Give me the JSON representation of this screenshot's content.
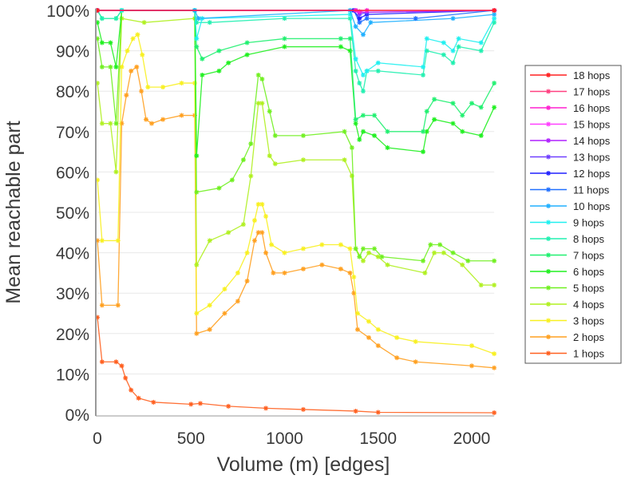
{
  "chart_data": {
    "type": "line",
    "title": "",
    "xlabel": "Volume (m) [edges]",
    "ylabel": "Mean reachable part",
    "xlim": [
      0,
      2120
    ],
    "ylim": [
      0,
      100
    ],
    "xticks": [
      "0",
      "500",
      "1000",
      "1500",
      "2000"
    ],
    "xtick_values": [
      0,
      500,
      1000,
      1500,
      2000
    ],
    "yticks": [
      "0%",
      "10%",
      "20%",
      "30%",
      "40%",
      "50%",
      "60%",
      "70%",
      "80%",
      "90%",
      "100%"
    ],
    "ytick_values": [
      0,
      10,
      20,
      30,
      40,
      50,
      60,
      70,
      80,
      90,
      100
    ],
    "grid": "horizontal",
    "legend_position": "right",
    "series": [
      {
        "name": "1 hops",
        "color": "#ff6020",
        "points": [
          [
            0,
            24
          ],
          [
            25,
            13
          ],
          [
            100,
            13
          ],
          [
            130,
            12
          ],
          [
            150,
            9
          ],
          [
            180,
            6
          ],
          [
            220,
            4
          ],
          [
            300,
            3
          ],
          [
            500,
            2.5
          ],
          [
            550,
            2.7
          ],
          [
            700,
            2
          ],
          [
            900,
            1.5
          ],
          [
            1100,
            1.2
          ],
          [
            1380,
            0.8
          ],
          [
            1500,
            0.5
          ],
          [
            2120,
            0.4
          ]
        ]
      },
      {
        "name": "2 hops",
        "color": "#ffa020",
        "points": [
          [
            0,
            43
          ],
          [
            25,
            27
          ],
          [
            110,
            27
          ],
          [
            130,
            72
          ],
          [
            155,
            79
          ],
          [
            180,
            85
          ],
          [
            210,
            86
          ],
          [
            235,
            80
          ],
          [
            260,
            73
          ],
          [
            290,
            72
          ],
          [
            350,
            73
          ],
          [
            450,
            74
          ],
          [
            520,
            74
          ],
          [
            530,
            20
          ],
          [
            600,
            21
          ],
          [
            680,
            25
          ],
          [
            750,
            28
          ],
          [
            800,
            33
          ],
          [
            840,
            43
          ],
          [
            860,
            45
          ],
          [
            880,
            45
          ],
          [
            900,
            40
          ],
          [
            940,
            35
          ],
          [
            1000,
            35
          ],
          [
            1100,
            36
          ],
          [
            1200,
            37
          ],
          [
            1300,
            36
          ],
          [
            1350,
            35
          ],
          [
            1370,
            30
          ],
          [
            1390,
            21
          ],
          [
            1450,
            19
          ],
          [
            1500,
            17
          ],
          [
            1600,
            14
          ],
          [
            1700,
            13
          ],
          [
            2000,
            12
          ],
          [
            2120,
            11.5
          ]
        ]
      },
      {
        "name": "3 hops",
        "color": "#f8f020",
        "points": [
          [
            0,
            58
          ],
          [
            25,
            43
          ],
          [
            110,
            43
          ],
          [
            130,
            86
          ],
          [
            160,
            90
          ],
          [
            190,
            93
          ],
          [
            215,
            94
          ],
          [
            240,
            89
          ],
          [
            270,
            81
          ],
          [
            350,
            81
          ],
          [
            450,
            82
          ],
          [
            520,
            82
          ],
          [
            530,
            25
          ],
          [
            600,
            27
          ],
          [
            680,
            31
          ],
          [
            750,
            35
          ],
          [
            800,
            40
          ],
          [
            840,
            48
          ],
          [
            860,
            52
          ],
          [
            880,
            52
          ],
          [
            900,
            49
          ],
          [
            930,
            42
          ],
          [
            1000,
            40
          ],
          [
            1100,
            41
          ],
          [
            1200,
            42
          ],
          [
            1300,
            42
          ],
          [
            1350,
            41
          ],
          [
            1370,
            34
          ],
          [
            1390,
            25
          ],
          [
            1450,
            23
          ],
          [
            1500,
            21
          ],
          [
            1600,
            19
          ],
          [
            1700,
            18
          ],
          [
            2000,
            17
          ],
          [
            2120,
            15
          ]
        ]
      },
      {
        "name": "4 hops",
        "color": "#b0f020",
        "points": [
          [
            0,
            82
          ],
          [
            25,
            72
          ],
          [
            70,
            72
          ],
          [
            100,
            60
          ],
          [
            130,
            98
          ],
          [
            250,
            97
          ],
          [
            520,
            98
          ],
          [
            530,
            37
          ],
          [
            600,
            43
          ],
          [
            700,
            45
          ],
          [
            780,
            47
          ],
          [
            820,
            59
          ],
          [
            860,
            77
          ],
          [
            880,
            77
          ],
          [
            920,
            64
          ],
          [
            950,
            62
          ],
          [
            1100,
            63
          ],
          [
            1320,
            63
          ],
          [
            1360,
            59
          ],
          [
            1380,
            41
          ],
          [
            1420,
            38
          ],
          [
            1450,
            40
          ],
          [
            1500,
            39
          ],
          [
            1550,
            37
          ],
          [
            1750,
            35
          ],
          [
            1800,
            40
          ],
          [
            1850,
            40
          ],
          [
            1950,
            37
          ],
          [
            2050,
            32
          ],
          [
            2120,
            32
          ]
        ]
      },
      {
        "name": "5 hops",
        "color": "#70f020",
        "points": [
          [
            0,
            93
          ],
          [
            25,
            86
          ],
          [
            70,
            86
          ],
          [
            100,
            72
          ],
          [
            130,
            100
          ],
          [
            520,
            100
          ],
          [
            530,
            55
          ],
          [
            650,
            56
          ],
          [
            720,
            58
          ],
          [
            780,
            63
          ],
          [
            820,
            67
          ],
          [
            860,
            84
          ],
          [
            880,
            83
          ],
          [
            920,
            75
          ],
          [
            950,
            69
          ],
          [
            1100,
            69
          ],
          [
            1320,
            70
          ],
          [
            1360,
            66
          ],
          [
            1380,
            41
          ],
          [
            1400,
            39
          ],
          [
            1420,
            41
          ],
          [
            1480,
            41
          ],
          [
            1520,
            39
          ],
          [
            1740,
            38
          ],
          [
            1780,
            42
          ],
          [
            1830,
            42
          ],
          [
            1900,
            40
          ],
          [
            1980,
            38
          ],
          [
            2120,
            38
          ]
        ]
      },
      {
        "name": "6 hops",
        "color": "#20f020",
        "points": [
          [
            0,
            97
          ],
          [
            25,
            92
          ],
          [
            70,
            92
          ],
          [
            100,
            86
          ],
          [
            130,
            100
          ],
          [
            520,
            100
          ],
          [
            530,
            64
          ],
          [
            560,
            84
          ],
          [
            650,
            85
          ],
          [
            700,
            87
          ],
          [
            800,
            89
          ],
          [
            1000,
            91
          ],
          [
            1300,
            91
          ],
          [
            1350,
            90
          ],
          [
            1380,
            72
          ],
          [
            1400,
            68
          ],
          [
            1420,
            70
          ],
          [
            1480,
            69
          ],
          [
            1550,
            66
          ],
          [
            1740,
            65
          ],
          [
            1760,
            70
          ],
          [
            1800,
            73
          ],
          [
            1900,
            72
          ],
          [
            1950,
            70
          ],
          [
            2050,
            69
          ],
          [
            2120,
            76
          ]
        ]
      },
      {
        "name": "7 hops",
        "color": "#20f070",
        "points": [
          [
            0,
            100
          ],
          [
            25,
            98
          ],
          [
            100,
            98
          ],
          [
            130,
            100
          ],
          [
            520,
            100
          ],
          [
            530,
            91
          ],
          [
            560,
            88
          ],
          [
            650,
            90
          ],
          [
            800,
            92
          ],
          [
            1000,
            93
          ],
          [
            1300,
            93
          ],
          [
            1350,
            93
          ],
          [
            1380,
            73
          ],
          [
            1420,
            74
          ],
          [
            1480,
            74
          ],
          [
            1550,
            70
          ],
          [
            1740,
            70
          ],
          [
            1760,
            75
          ],
          [
            1800,
            78
          ],
          [
            1900,
            77
          ],
          [
            1950,
            74
          ],
          [
            2000,
            77
          ],
          [
            2050,
            76
          ],
          [
            2120,
            82
          ]
        ]
      },
      {
        "name": "8 hops",
        "color": "#20f0b0",
        "points": [
          [
            0,
            100
          ],
          [
            25,
            98
          ],
          [
            100,
            98
          ],
          [
            130,
            100
          ],
          [
            520,
            100
          ],
          [
            530,
            97
          ],
          [
            600,
            97
          ],
          [
            1000,
            98
          ],
          [
            1350,
            98
          ],
          [
            1380,
            85
          ],
          [
            1400,
            82
          ],
          [
            1420,
            80
          ],
          [
            1440,
            85
          ],
          [
            1500,
            85
          ],
          [
            1740,
            84
          ],
          [
            1760,
            90
          ],
          [
            1850,
            89
          ],
          [
            1900,
            87
          ],
          [
            1930,
            91
          ],
          [
            2050,
            90
          ],
          [
            2120,
            97
          ]
        ]
      },
      {
        "name": "9 hops",
        "color": "#20f0f0",
        "points": [
          [
            0,
            100
          ],
          [
            130,
            100
          ],
          [
            520,
            100
          ],
          [
            530,
            93
          ],
          [
            560,
            98
          ],
          [
            1350,
            99
          ],
          [
            1380,
            88
          ],
          [
            1420,
            84
          ],
          [
            1440,
            85
          ],
          [
            1500,
            87
          ],
          [
            1740,
            86
          ],
          [
            1760,
            93
          ],
          [
            1850,
            92
          ],
          [
            1900,
            90
          ],
          [
            1930,
            93
          ],
          [
            2050,
            92
          ],
          [
            2120,
            98
          ]
        ]
      },
      {
        "name": "10 hops",
        "color": "#20b0ff",
        "points": [
          [
            0,
            100
          ],
          [
            520,
            100
          ],
          [
            540,
            98
          ],
          [
            1350,
            100
          ],
          [
            1380,
            96
          ],
          [
            1420,
            94
          ],
          [
            1460,
            97
          ],
          [
            1900,
            98
          ],
          [
            2120,
            99
          ]
        ]
      },
      {
        "name": "11 hops",
        "color": "#2070ff",
        "points": [
          [
            0,
            100
          ],
          [
            1370,
            100
          ],
          [
            1400,
            97
          ],
          [
            1440,
            98
          ],
          [
            1700,
            98
          ],
          [
            2120,
            100
          ]
        ]
      },
      {
        "name": "12 hops",
        "color": "#2020ff",
        "points": [
          [
            0,
            100
          ],
          [
            1370,
            100
          ],
          [
            1400,
            98
          ],
          [
            1440,
            99
          ],
          [
            2120,
            100
          ]
        ]
      },
      {
        "name": "13 hops",
        "color": "#7040ff",
        "points": [
          [
            0,
            100
          ],
          [
            1380,
            100
          ],
          [
            1400,
            99
          ],
          [
            1440,
            99.5
          ],
          [
            2120,
            100
          ]
        ]
      },
      {
        "name": "14 hops",
        "color": "#b020ff",
        "points": [
          [
            0,
            100
          ],
          [
            1380,
            100
          ],
          [
            1400,
            99.5
          ],
          [
            2120,
            100
          ]
        ]
      },
      {
        "name": "15 hops",
        "color": "#ff40ff",
        "points": [
          [
            0,
            100
          ],
          [
            2120,
            100
          ]
        ]
      },
      {
        "name": "16 hops",
        "color": "#ff20d0",
        "points": [
          [
            0,
            100
          ],
          [
            1380,
            100
          ],
          [
            1400,
            99.7
          ],
          [
            1440,
            100
          ],
          [
            2120,
            100
          ]
        ]
      },
      {
        "name": "17 hops",
        "color": "#ff4080",
        "points": [
          [
            0,
            100
          ],
          [
            2120,
            100
          ]
        ]
      },
      {
        "name": "18 hops",
        "color": "#ff2020",
        "points": [
          [
            0,
            100
          ],
          [
            2120,
            100
          ]
        ]
      }
    ]
  }
}
